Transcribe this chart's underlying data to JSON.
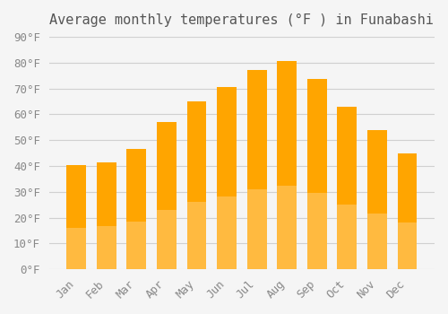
{
  "title": "Average monthly temperatures (°F ) in Funabashi",
  "months": [
    "Jan",
    "Feb",
    "Mar",
    "Apr",
    "May",
    "Jun",
    "Jul",
    "Aug",
    "Sep",
    "Oct",
    "Nov",
    "Dec"
  ],
  "values": [
    40.5,
    41.5,
    46.5,
    57,
    65,
    70.5,
    77,
    80.5,
    73.5,
    63,
    54,
    45
  ],
  "bar_color_top": "#FFA500",
  "bar_color_bottom": "#FFD580",
  "ylim": [
    0,
    90
  ],
  "yticks": [
    0,
    10,
    20,
    30,
    40,
    50,
    60,
    70,
    80,
    90
  ],
  "background_color": "#f5f5f5",
  "grid_color": "#d0d0d0",
  "title_fontsize": 11,
  "tick_fontsize": 9
}
